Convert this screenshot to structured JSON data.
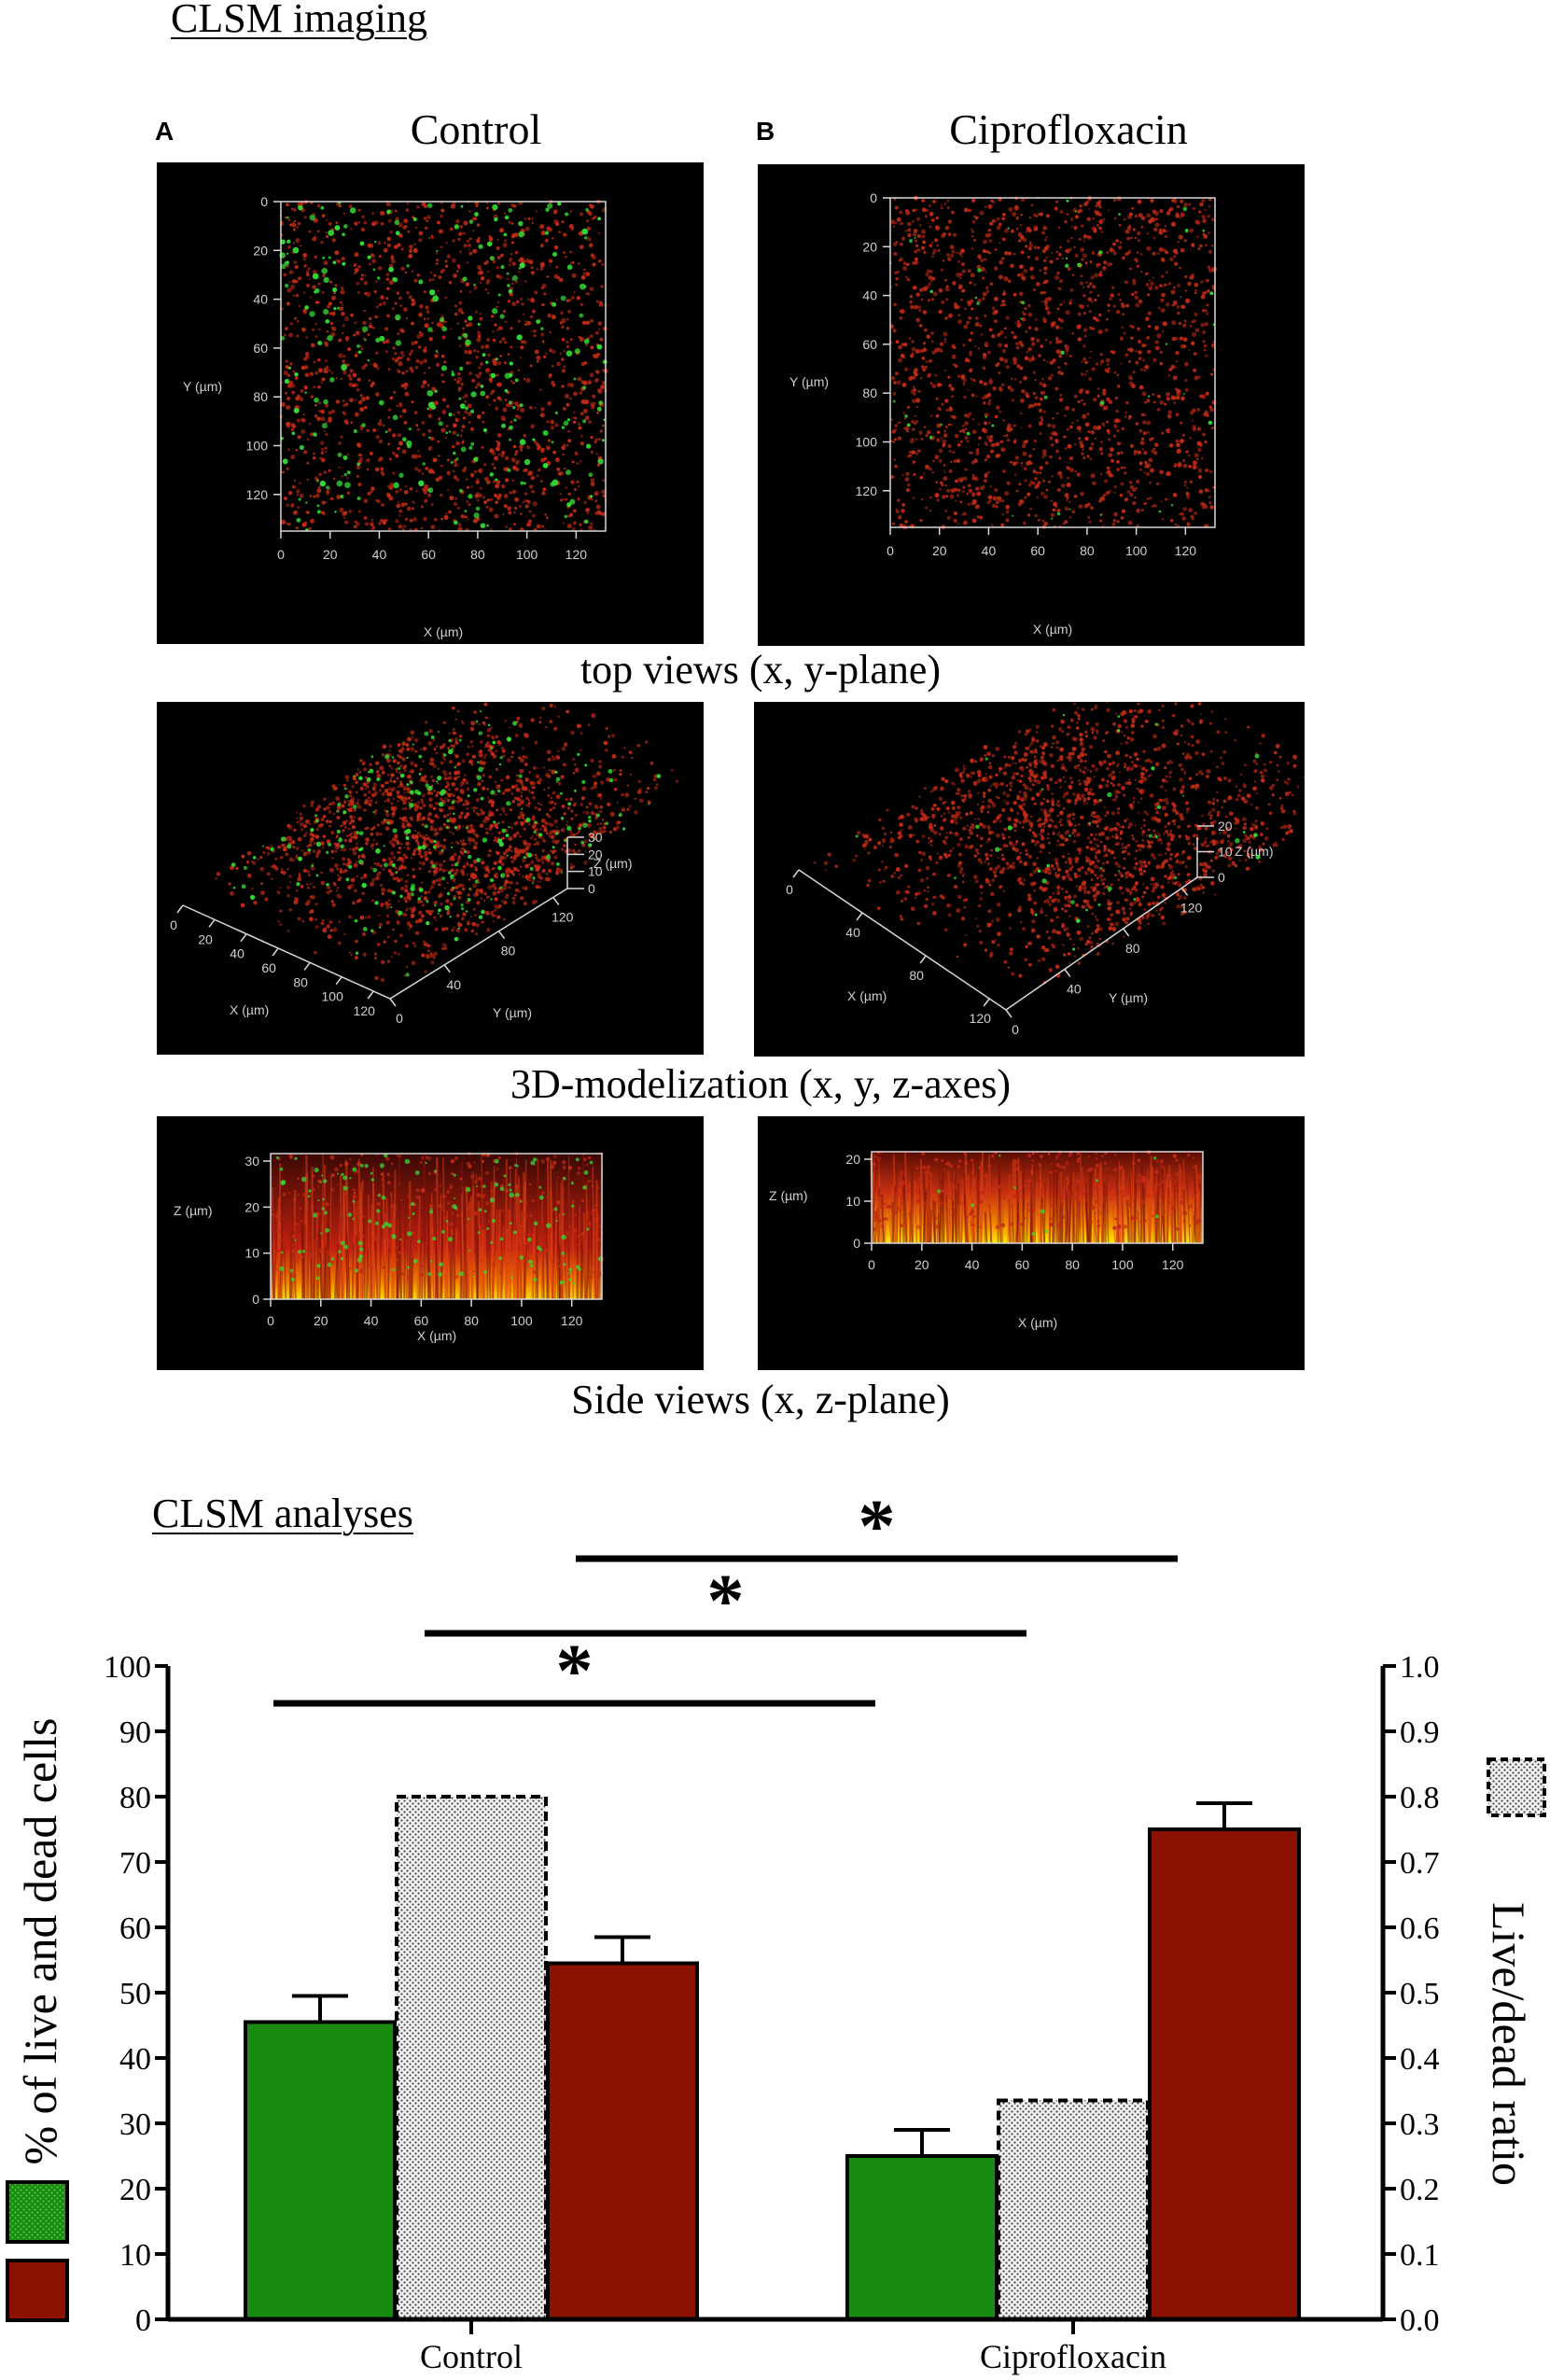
{
  "imaging": {
    "section_title": "CLSM imaging",
    "panels": [
      {
        "letter": "A",
        "title": "Control"
      },
      {
        "letter": "B",
        "title": "Ciprofloxacin"
      }
    ],
    "top_view": {
      "caption": "top views (x, y-plane)",
      "x_label": "X (µm)",
      "y_label": "Y (µm)",
      "x_ticks": [
        "0",
        "20",
        "40",
        "60",
        "80",
        "100",
        "120"
      ],
      "y_ticks": [
        "0",
        "20",
        "40",
        "60",
        "80",
        "100",
        "120"
      ]
    },
    "model_3d": {
      "caption": "3D-modelization (x, y, z-axes)",
      "x_label": "X (µm)",
      "y_label": "Y (µm)",
      "z_label": "Z (µm)",
      "control": {
        "z_ticks": [
          "30",
          "20",
          "10",
          "0"
        ],
        "x_ticks": [
          "0",
          "20",
          "40",
          "60",
          "80",
          "100",
          "120"
        ],
        "y_ticks": [
          "0",
          "40",
          "80",
          "120"
        ]
      },
      "cipro": {
        "z_ticks": [
          "20",
          "10",
          "0"
        ],
        "x_ticks": [
          "0",
          "40",
          "80",
          "120"
        ],
        "y_ticks": [
          "0",
          "40",
          "80",
          "120"
        ]
      }
    },
    "side_view": {
      "caption": "Side views (x, z-plane)",
      "x_label": "X (µm)",
      "z_label": "Z (µm)",
      "x_ticks": [
        "0",
        "20",
        "40",
        "60",
        "80",
        "100",
        "120"
      ],
      "control_z_ticks": [
        "30",
        "20",
        "10",
        "0"
      ],
      "cipro_z_ticks": [
        "20",
        "10",
        "0"
      ]
    },
    "colors": {
      "live": "#33dd33",
      "dead": "#c22a14",
      "base": "#f0d000"
    }
  },
  "analyses": {
    "section_title": "CLSM analyses",
    "chart_data": {
      "type": "bar",
      "categories": [
        "Control",
        "Ciprofloxacin"
      ],
      "series": [
        {
          "axis": "left",
          "color": "#1a8a10",
          "values": [
            45.5,
            25
          ],
          "errors": [
            4,
            4
          ]
        },
        {
          "axis": "right",
          "color": "#e6e6e6",
          "pattern": "dotted",
          "values": [
            0.8,
            0.335
          ],
          "errors": [
            0,
            0
          ]
        },
        {
          "axis": "left",
          "color": "#8b1200",
          "values": [
            54.5,
            75
          ],
          "errors": [
            4,
            4
          ]
        }
      ],
      "ylabel": "% of live and dead cells",
      "ylabel_right": "Live/dead ratio",
      "ylim": [
        0,
        100
      ],
      "ylim_right": [
        0,
        1.0
      ],
      "yticks": [
        "0",
        "10",
        "20",
        "30",
        "40",
        "50",
        "60",
        "70",
        "80",
        "90",
        "100"
      ],
      "yticks_right": [
        "0.0",
        "0.1",
        "0.2",
        "0.3",
        "0.4",
        "0.5",
        "0.6",
        "0.7",
        "0.8",
        "0.9",
        "1.0"
      ],
      "significance": [
        {
          "from": [
            0,
            0
          ],
          "to": [
            1,
            0
          ],
          "symbol": "*"
        },
        {
          "from": [
            0,
            1
          ],
          "to": [
            1,
            1
          ],
          "symbol": "*"
        },
        {
          "from": [
            0,
            2
          ],
          "to": [
            1,
            2
          ],
          "symbol": "*"
        }
      ],
      "legend": "left-bottom"
    }
  }
}
